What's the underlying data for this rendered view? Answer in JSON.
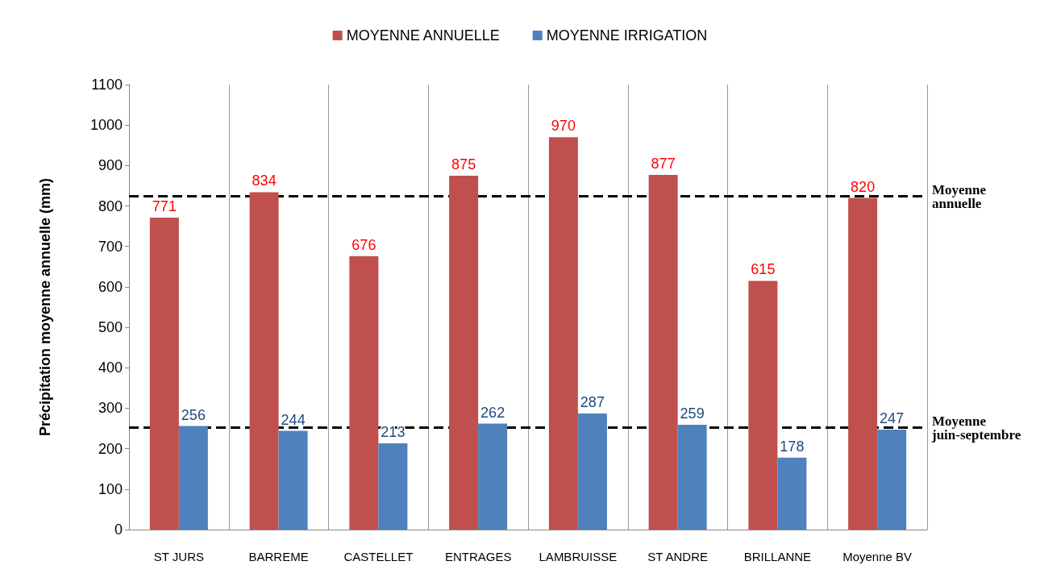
{
  "chart_data": {
    "type": "bar",
    "categories": [
      "ST JURS",
      "BARREME",
      "CASTELLET",
      "ENTRAGES",
      "LAMBRUISSE",
      "ST ANDRE",
      "BRILLANNE",
      "Moyenne BV"
    ],
    "series": [
      {
        "name": "MOYENNE ANNUELLE",
        "color": "#c0504d",
        "values": [
          771,
          834,
          676,
          875,
          970,
          877,
          615,
          820
        ]
      },
      {
        "name": "MOYENNE IRRIGATION",
        "color": "#4f81bd",
        "values": [
          256,
          244,
          213,
          262,
          287,
          259,
          178,
          247
        ]
      }
    ],
    "ylabel": "Précipitation moyenne annuelle (mm)",
    "ylim": [
      0,
      1100
    ],
    "yticks": [
      0,
      100,
      200,
      300,
      400,
      500,
      600,
      700,
      800,
      900,
      1000,
      1100
    ],
    "ref_lines": [
      {
        "axis": "y",
        "value": 824,
        "label": "Moyenne annuelle",
        "color": "#000000",
        "line_style": "dashed"
      },
      {
        "axis": "y",
        "value": 252,
        "label": "Moyenne juin-septembre",
        "color": "#000000",
        "line_style": "dashed"
      }
    ],
    "data_labels": true,
    "grid": "x",
    "legend": "top"
  }
}
